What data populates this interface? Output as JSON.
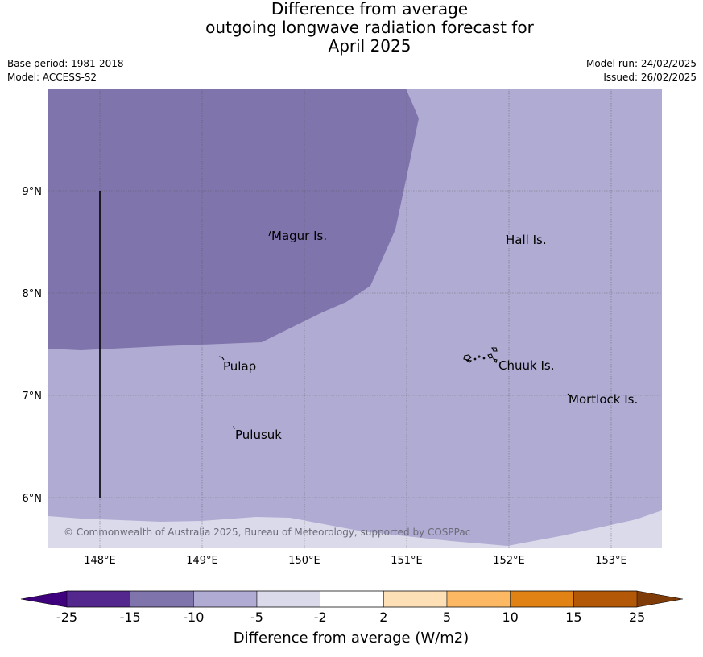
{
  "title": {
    "line1": "Difference from average",
    "line2": "outgoing longwave radiation forecast for",
    "line3": "April 2025"
  },
  "meta": {
    "base_period": "Base period: 1981-2018",
    "model": "Model: ACCESS-S2",
    "model_run": "Model run: 24/02/2025",
    "issued": "Issued: 26/02/2025"
  },
  "map": {
    "lon_labels": [
      "148°E",
      "149°E",
      "150°E",
      "151°E",
      "152°E",
      "153°E"
    ],
    "lat_labels": [
      "9°N",
      "8°N",
      "7°N",
      "6°N"
    ],
    "places": [
      "Magur Is.",
      "Hall Is.",
      "Pulap",
      "Chuuk Is.",
      "Mortlock Is.",
      "Pulusuk"
    ],
    "copyright": "© Commonwealth of Australia 2025, Bureau of Meteorology, supported by COSPPac"
  },
  "colors": {
    "very_low": "#7f74ab",
    "low": "#b0abd2",
    "near_zero": "#dadaeb"
  },
  "legend": {
    "tick_labels": [
      "-25",
      "-15",
      "-10",
      "-5",
      "-2",
      "2",
      "5",
      "10",
      "15",
      "25"
    ],
    "colors": [
      "#54278f",
      "#7f74ab",
      "#b0abd2",
      "#dadaeb",
      "#ffffff",
      "#fee0b6",
      "#fdb863",
      "#e08214",
      "#b35806"
    ],
    "under_color": "#3f007d",
    "over_color": "#7f3b08",
    "label": "Difference from average (W/m2)"
  }
}
